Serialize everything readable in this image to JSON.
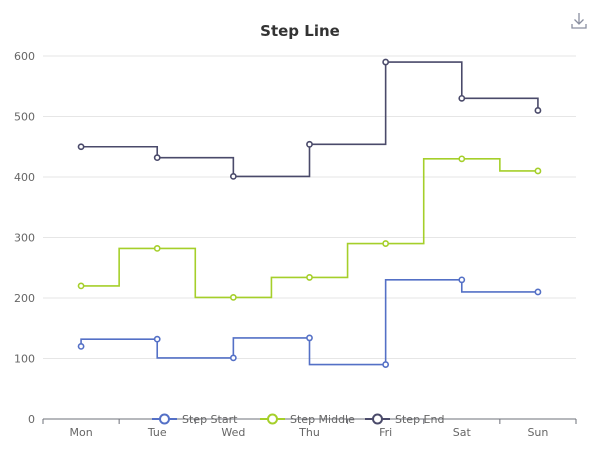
{
  "chart_data": {
    "type": "line",
    "title": "Step Line",
    "categories": [
      "Mon",
      "Tue",
      "Wed",
      "Thu",
      "Fri",
      "Sat",
      "Sun"
    ],
    "ylim": [
      0,
      600
    ],
    "yticks": [
      0,
      100,
      200,
      300,
      400,
      500,
      600
    ],
    "grid": true,
    "legend_position": "bottom",
    "series": [
      {
        "name": "Step Start",
        "step": "start",
        "color": "#5470c6",
        "values": [
          120,
          132,
          101,
          134,
          90,
          230,
          210
        ]
      },
      {
        "name": "Step Middle",
        "step": "middle",
        "color": "#a5cf2a",
        "values": [
          220,
          282,
          201,
          234,
          290,
          430,
          410
        ]
      },
      {
        "name": "Step End",
        "step": "end",
        "color": "#4a4a6a",
        "values": [
          450,
          432,
          401,
          454,
          590,
          530,
          510
        ]
      }
    ]
  },
  "toolbar": {
    "download_icon": "download-icon"
  }
}
